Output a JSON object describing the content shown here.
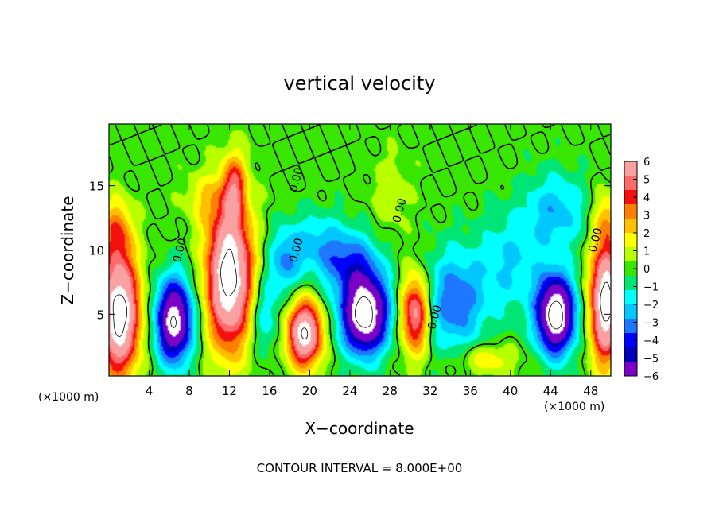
{
  "chart_data": {
    "type": "heatmap",
    "title": "vertical velocity",
    "xlabel": "X−coordinate",
    "ylabel": "Z−coordinate",
    "x_unit": "(×1000 m)",
    "x_unit_right": "(×1000 m)",
    "x_ticks": [
      "4",
      "8",
      "12",
      "16",
      "20",
      "24",
      "28",
      "32",
      "36",
      "40",
      "44",
      "48"
    ],
    "y_ticks": [
      "5",
      "10",
      "15"
    ],
    "xlim": [
      0,
      50
    ],
    "ylim": [
      0.2,
      19.8
    ],
    "colorbar": {
      "ticks": [
        "6",
        "5",
        "4",
        "3",
        "2",
        "1",
        "0",
        "−1",
        "−2",
        "−3",
        "−4",
        "−5",
        "−6"
      ],
      "range": [
        -6,
        6
      ],
      "colors": [
        "#f9a0a0",
        "#ff6a6a",
        "#f51010",
        "#ff7f00",
        "#ffc000",
        "#ffff00",
        "#b8ff00",
        "#39e600",
        "#00e676",
        "#00ffff",
        "#00c8ff",
        "#1e78ff",
        "#0000ff",
        "#0000b8",
        "#7b00c8"
      ]
    },
    "contour_labels": [
      {
        "text": "0.00",
        "x": 7.4,
        "y": 9.9
      },
      {
        "text": "0.00",
        "x": 19.0,
        "y": 15.4
      },
      {
        "text": "0.00",
        "x": 19.0,
        "y": 9.9
      },
      {
        "text": "0.00",
        "x": 29.3,
        "y": 13.0
      },
      {
        "text": "0.00",
        "x": 32.8,
        "y": 4.7
      },
      {
        "text": "0.00",
        "x": 48.8,
        "y": 10.7
      }
    ],
    "contour_interval_text": "CONTOUR INTERVAL = 8.000E+00",
    "field_features": [
      {
        "x": 1.0,
        "z": 5.0,
        "w": 9.0,
        "sx": 2.0,
        "sz": 4.5
      },
      {
        "x": 0.8,
        "z": 11.5,
        "w": 3.0,
        "sx": 1.5,
        "sz": 2.5
      },
      {
        "x": 6.5,
        "z": 4.5,
        "w": -8.0,
        "sx": 1.8,
        "sz": 3.2
      },
      {
        "x": 12.0,
        "z": 8.0,
        "w": 9.0,
        "sx": 2.2,
        "sz": 5.5
      },
      {
        "x": 12.5,
        "z": 15.0,
        "w": 3.5,
        "sx": 1.2,
        "sz": 2.5
      },
      {
        "x": 9.5,
        "z": 14.0,
        "w": 1.5,
        "sx": 2.0,
        "sz": 2.0
      },
      {
        "x": 15.5,
        "z": 5.0,
        "w": -2.0,
        "sx": 1.5,
        "sz": 3.0
      },
      {
        "x": 19.5,
        "z": 3.5,
        "w": 8.0,
        "sx": 1.7,
        "sz": 2.5
      },
      {
        "x": 17.5,
        "z": 9.0,
        "w": -2.5,
        "sx": 1.5,
        "sz": 2.5
      },
      {
        "x": 20.5,
        "z": 10.5,
        "w": -2.0,
        "sx": 3.0,
        "sz": 2.5
      },
      {
        "x": 25.5,
        "z": 5.0,
        "w": -9.0,
        "sx": 2.3,
        "sz": 3.0
      },
      {
        "x": 24.0,
        "z": 9.0,
        "w": -3.0,
        "sx": 3.0,
        "sz": 2.5
      },
      {
        "x": 28.0,
        "z": 14.5,
        "w": 1.0,
        "sx": 2.0,
        "sz": 3.0
      },
      {
        "x": 30.5,
        "z": 5.0,
        "w": 6.0,
        "sx": 1.4,
        "sz": 3.0
      },
      {
        "x": 34.5,
        "z": 6.0,
        "w": -3.5,
        "sx": 3.0,
        "sz": 4.0
      },
      {
        "x": 37.5,
        "z": 1.5,
        "w": 2.0,
        "sx": 3.0,
        "sz": 1.2
      },
      {
        "x": 40.0,
        "z": 9.0,
        "w": -2.0,
        "sx": 3.0,
        "sz": 4.0
      },
      {
        "x": 44.5,
        "z": 5.0,
        "w": -9.0,
        "sx": 1.9,
        "sz": 3.0
      },
      {
        "x": 44.5,
        "z": 13.0,
        "w": -2.5,
        "sx": 3.0,
        "sz": 3.0
      },
      {
        "x": 49.5,
        "z": 6.0,
        "w": 9.0,
        "sx": 1.5,
        "sz": 4.5
      },
      {
        "x": 49.5,
        "z": 12.5,
        "w": 2.0,
        "sx": 1.2,
        "sz": 2.0
      }
    ],
    "grid": false,
    "legend": "right"
  }
}
